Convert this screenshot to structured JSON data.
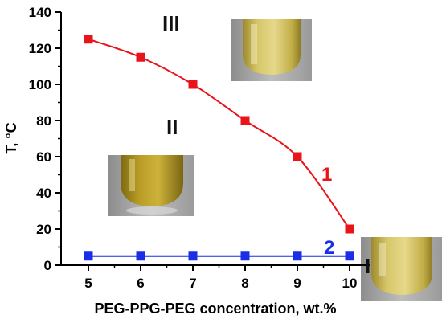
{
  "chart_data": {
    "type": "line",
    "xlabel": "PEG-PPG-PEG concentration, wt.%",
    "ylabel": "T, °C",
    "xlim": [
      5,
      10
    ],
    "ylim": [
      0,
      140
    ],
    "xticks": [
      5,
      6,
      7,
      8,
      9,
      10
    ],
    "yticks": [
      0,
      20,
      40,
      60,
      80,
      100,
      120,
      140
    ],
    "x": [
      5,
      6,
      7,
      8,
      9,
      10
    ],
    "series": [
      {
        "name": "1",
        "values": [
          125,
          115,
          100,
          80,
          60,
          20
        ],
        "color": "#e8141a",
        "marker": "square",
        "fit": "smooth-curve"
      },
      {
        "name": "2",
        "values": [
          5,
          5,
          5,
          5,
          5,
          5
        ],
        "color": "#1a2ee8",
        "marker": "square",
        "fit": "straight-line"
      }
    ],
    "region_labels": [
      "III",
      "II",
      "I"
    ],
    "inset_photos": [
      "vial-photo-region-III",
      "vial-photo-region-II",
      "vial-photo-region-I"
    ],
    "grid": false,
    "legend": "none"
  }
}
